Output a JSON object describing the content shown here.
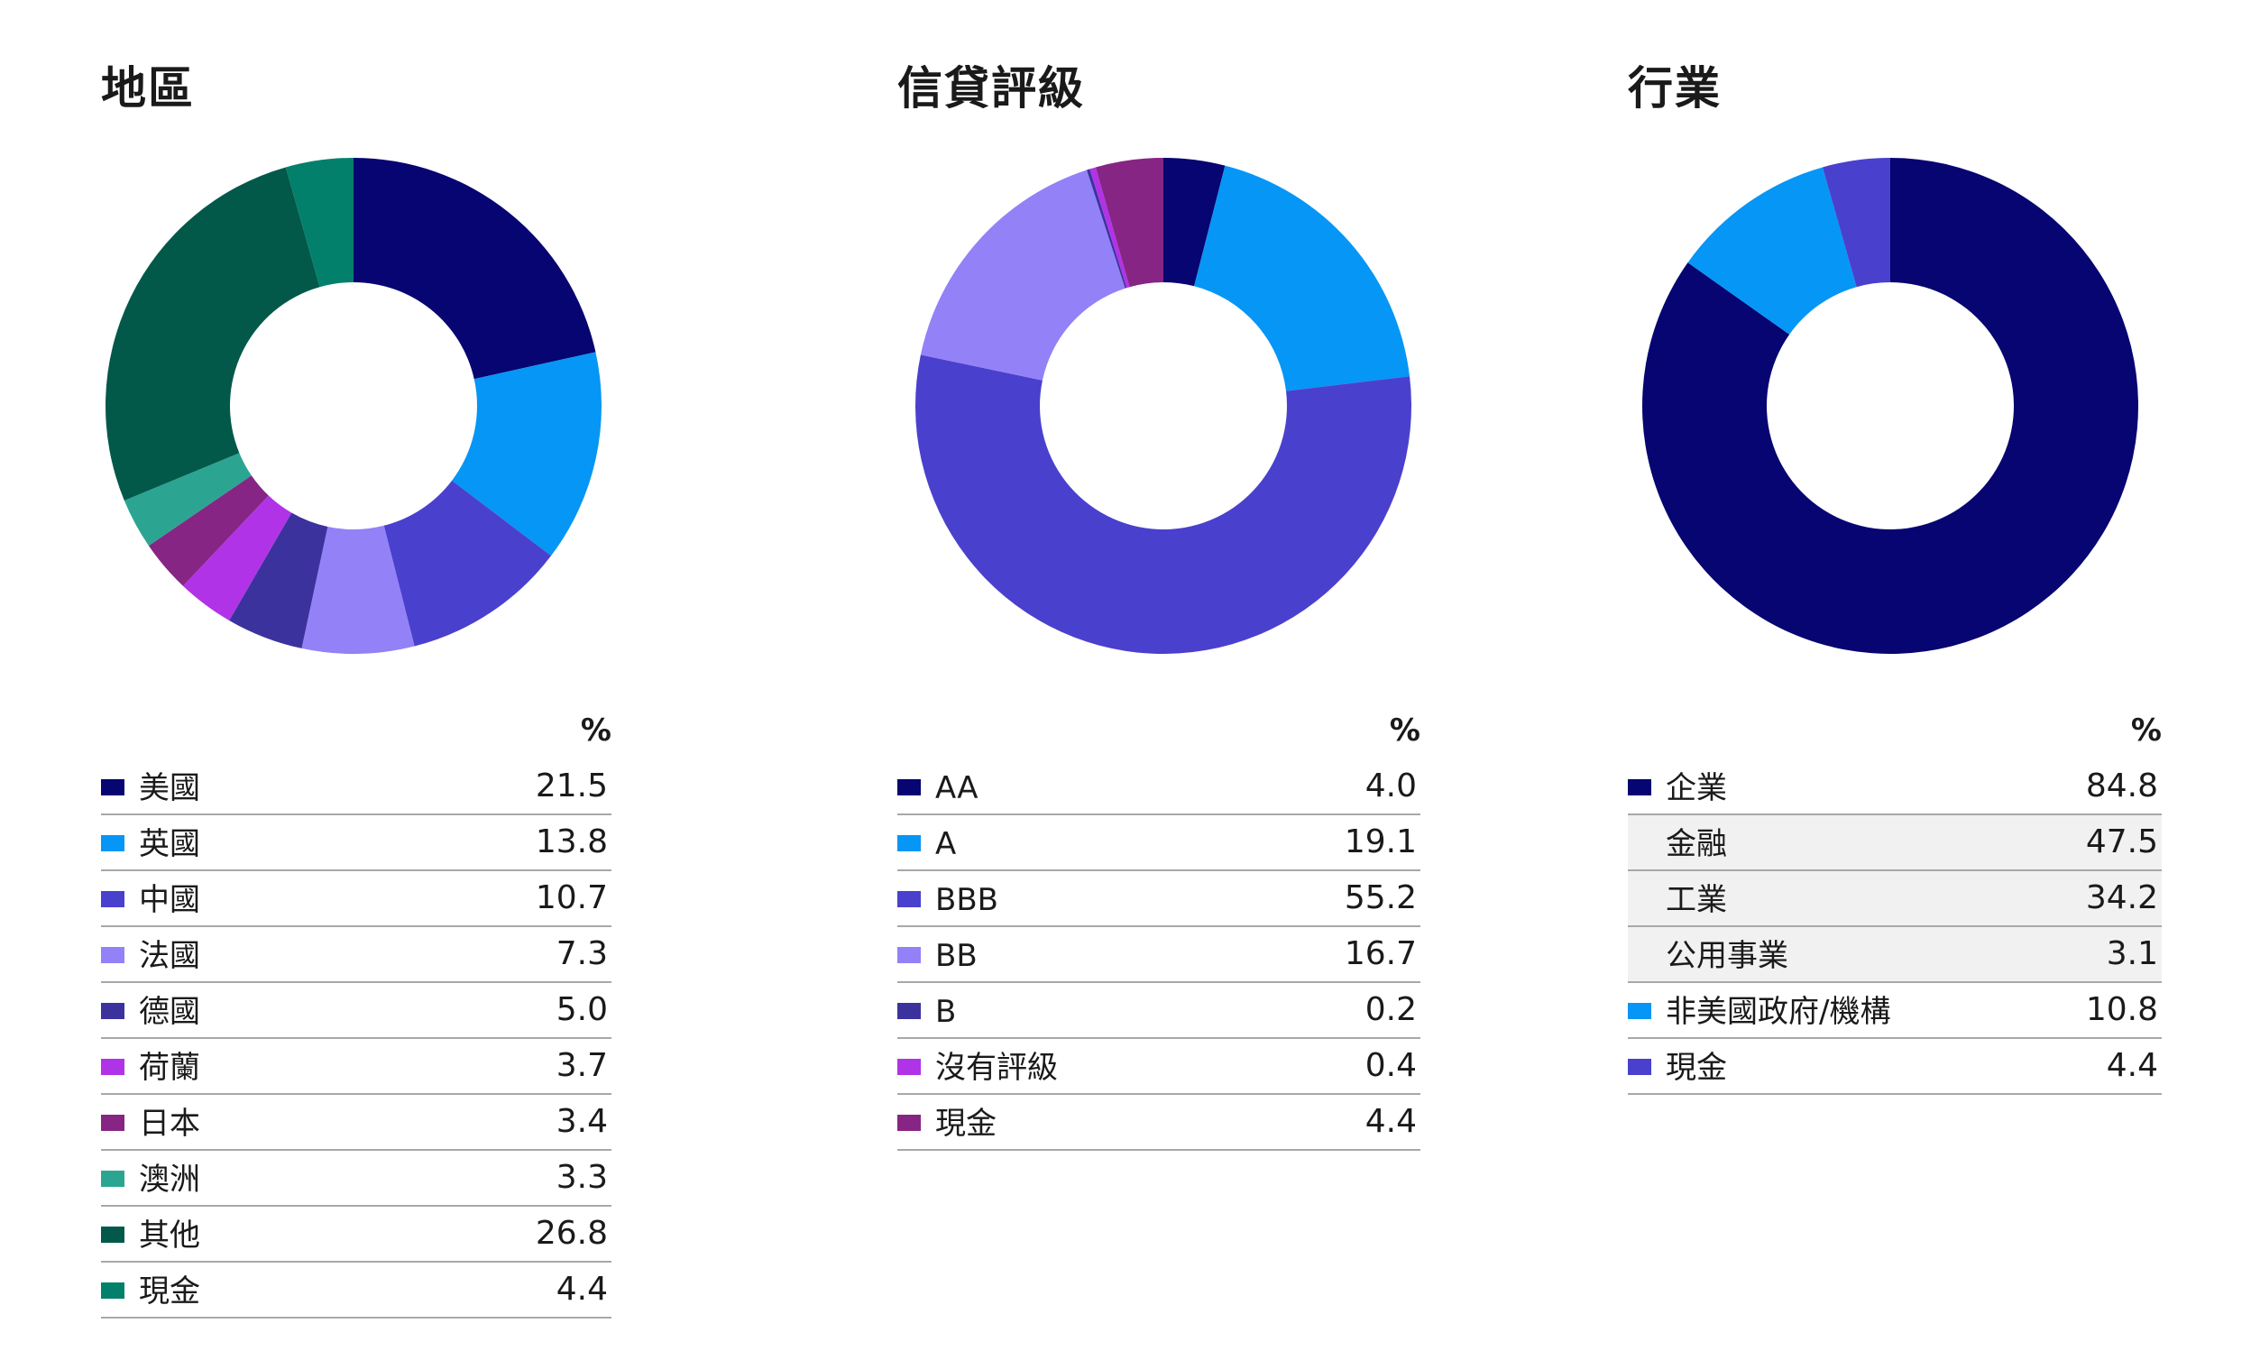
{
  "chart_data": [
    {
      "type": "pie",
      "title": "地區",
      "percent_header": "%",
      "categories": [
        "美國",
        "英國",
        "中國",
        "法國",
        "德國",
        "荷蘭",
        "日本",
        "澳洲",
        "其他",
        "現金"
      ],
      "values": [
        21.5,
        13.8,
        10.7,
        7.3,
        5.0,
        3.7,
        3.4,
        3.3,
        26.8,
        4.4
      ],
      "value_labels": [
        "21.5",
        "13.8",
        "10.7",
        "7.3",
        "5.0",
        "3.7",
        "3.4",
        "3.3",
        "26.8",
        "4.4"
      ],
      "colors": [
        "#060571",
        "#0696F5",
        "#4A40CE",
        "#9381F8",
        "#3C329E",
        "#B133E7",
        "#862584",
        "#2BA591",
        "#025949",
        "#03806C"
      ],
      "legend": "bottom-table"
    },
    {
      "type": "pie",
      "title": "信貸評級",
      "percent_header": "%",
      "categories": [
        "AA",
        "A",
        "BBB",
        "BB",
        "B",
        "沒有評級",
        "現金"
      ],
      "values": [
        4.0,
        19.1,
        55.2,
        16.7,
        0.2,
        0.4,
        4.4
      ],
      "value_labels": [
        "4.0",
        "19.1",
        "55.2",
        "16.7",
        "0.2",
        "0.4",
        "4.4"
      ],
      "colors": [
        "#060571",
        "#0696F5",
        "#4A40CE",
        "#9381F8",
        "#3C329E",
        "#B133E7",
        "#862584"
      ],
      "legend": "bottom-table"
    },
    {
      "type": "pie",
      "title": "行業",
      "percent_header": "%",
      "categories": [
        "企業",
        "非美國政府/機構",
        "現金"
      ],
      "values": [
        84.8,
        10.8,
        4.4
      ],
      "colors": [
        "#060571",
        "#0696F5",
        "#4A40CE"
      ],
      "legend": "bottom-table",
      "table_rows": [
        {
          "label": "企業",
          "value": "84.8",
          "color": "#060571",
          "sub": false
        },
        {
          "label": "金融",
          "value": "47.5",
          "color": "",
          "sub": true
        },
        {
          "label": "工業",
          "value": "34.2",
          "color": "",
          "sub": true
        },
        {
          "label": "公用事業",
          "value": "3.1",
          "color": "",
          "sub": true
        },
        {
          "label": "非美國政府/機構",
          "value": "10.8",
          "color": "#0696F5",
          "sub": false
        },
        {
          "label": "現金",
          "value": "4.4",
          "color": "#4A40CE",
          "sub": false
        }
      ]
    }
  ]
}
